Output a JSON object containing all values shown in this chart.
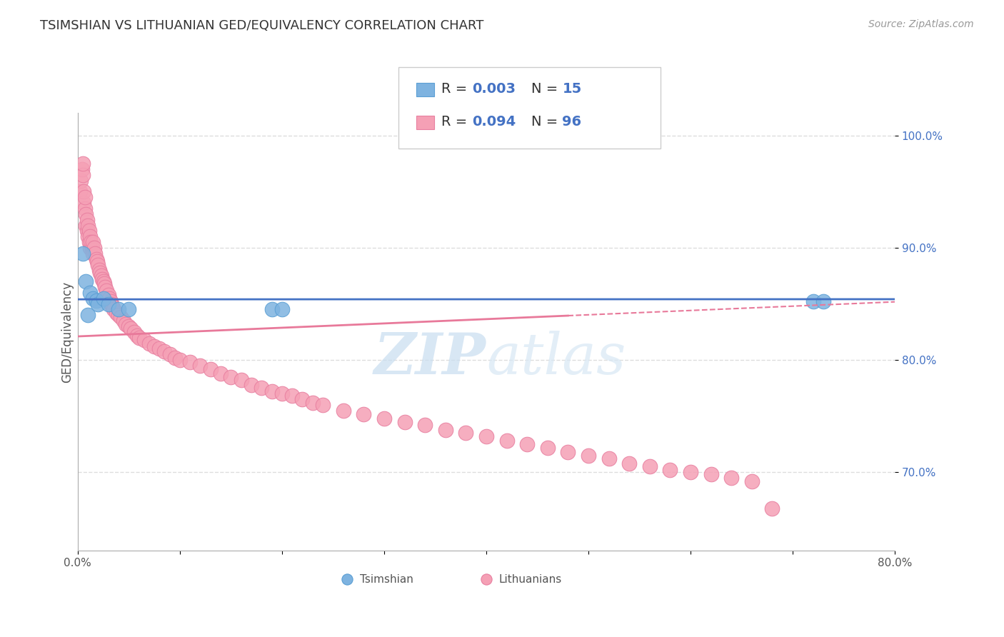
{
  "title": "TSIMSHIAN VS LITHUANIAN GED/EQUIVALENCY CORRELATION CHART",
  "source": "Source: ZipAtlas.com",
  "xlabel": "",
  "ylabel": "GED/Equivalency",
  "xlim": [
    0.0,
    0.8
  ],
  "ylim": [
    0.63,
    1.02
  ],
  "xticks": [
    0.0,
    0.1,
    0.2,
    0.3,
    0.4,
    0.5,
    0.6,
    0.7,
    0.8
  ],
  "xticklabels": [
    "0.0%",
    "",
    "",
    "",
    "",
    "",
    "",
    "",
    "80.0%"
  ],
  "ytick_positions": [
    0.7,
    0.8,
    0.9,
    1.0
  ],
  "yticklabels": [
    "70.0%",
    "80.0%",
    "90.0%",
    "100.0%"
  ],
  "tsimshian_color": "#7eb3e0",
  "lithuanian_color": "#f5a0b5",
  "tsimshian_edge": "#5b9fd4",
  "lithuanian_edge": "#e87fa0",
  "regression_blue": "#4472c4",
  "regression_pink": "#e8799a",
  "legend_R_tsimshian": "0.003",
  "legend_N_tsimshian": "15",
  "legend_R_lithuanian": "0.094",
  "legend_N_lithuanian": "96",
  "tsimshian_x": [
    0.005,
    0.008,
    0.01,
    0.012,
    0.015,
    0.018,
    0.02,
    0.025,
    0.03,
    0.04,
    0.05,
    0.19,
    0.2,
    0.72,
    0.73
  ],
  "tsimshian_y": [
    0.895,
    0.87,
    0.84,
    0.86,
    0.855,
    0.853,
    0.85,
    0.855,
    0.85,
    0.845,
    0.845,
    0.845,
    0.845,
    0.852,
    0.852
  ],
  "lithuanian_x": [
    0.002,
    0.003,
    0.004,
    0.005,
    0.005,
    0.006,
    0.006,
    0.007,
    0.007,
    0.008,
    0.008,
    0.009,
    0.009,
    0.01,
    0.01,
    0.011,
    0.011,
    0.012,
    0.012,
    0.013,
    0.014,
    0.015,
    0.015,
    0.016,
    0.017,
    0.018,
    0.019,
    0.02,
    0.021,
    0.022,
    0.023,
    0.024,
    0.025,
    0.026,
    0.027,
    0.028,
    0.03,
    0.031,
    0.032,
    0.033,
    0.034,
    0.035,
    0.038,
    0.04,
    0.042,
    0.045,
    0.047,
    0.05,
    0.052,
    0.055,
    0.058,
    0.06,
    0.065,
    0.07,
    0.075,
    0.08,
    0.085,
    0.09,
    0.095,
    0.1,
    0.11,
    0.12,
    0.13,
    0.14,
    0.15,
    0.16,
    0.17,
    0.18,
    0.19,
    0.2,
    0.21,
    0.22,
    0.23,
    0.24,
    0.26,
    0.28,
    0.3,
    0.32,
    0.34,
    0.36,
    0.38,
    0.4,
    0.42,
    0.44,
    0.46,
    0.48,
    0.5,
    0.52,
    0.54,
    0.56,
    0.58,
    0.6,
    0.62,
    0.64,
    0.66,
    0.68
  ],
  "lithuanian_y": [
    0.95,
    0.96,
    0.97,
    0.965,
    0.975,
    0.94,
    0.95,
    0.935,
    0.945,
    0.93,
    0.92,
    0.925,
    0.915,
    0.92,
    0.91,
    0.915,
    0.905,
    0.91,
    0.9,
    0.905,
    0.9,
    0.895,
    0.905,
    0.9,
    0.895,
    0.89,
    0.888,
    0.885,
    0.88,
    0.878,
    0.875,
    0.872,
    0.87,
    0.868,
    0.865,
    0.862,
    0.858,
    0.855,
    0.852,
    0.85,
    0.848,
    0.845,
    0.842,
    0.84,
    0.838,
    0.835,
    0.832,
    0.83,
    0.828,
    0.825,
    0.822,
    0.82,
    0.818,
    0.815,
    0.812,
    0.81,
    0.808,
    0.805,
    0.802,
    0.8,
    0.798,
    0.795,
    0.792,
    0.788,
    0.785,
    0.782,
    0.778,
    0.775,
    0.772,
    0.77,
    0.768,
    0.765,
    0.762,
    0.76,
    0.755,
    0.752,
    0.748,
    0.745,
    0.742,
    0.738,
    0.735,
    0.732,
    0.728,
    0.725,
    0.722,
    0.718,
    0.715,
    0.712,
    0.708,
    0.705,
    0.702,
    0.7,
    0.698,
    0.695,
    0.692,
    0.668
  ],
  "watermark_zip": "ZIP",
  "watermark_atlas": "atlas",
  "background_color": "#ffffff",
  "grid_color": "#dddddd"
}
